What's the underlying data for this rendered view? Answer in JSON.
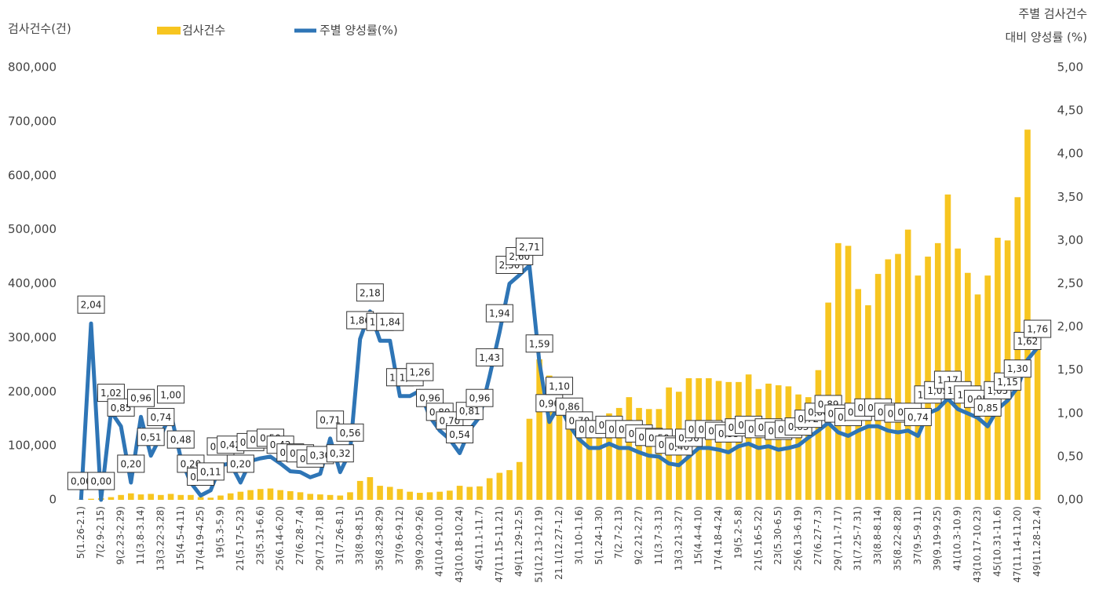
{
  "chart_data": {
    "type": "combo",
    "y_label": "검사건수(건)",
    "y2_label": [
      "주별 검사건수",
      "대비 양성률 (%)"
    ],
    "legend": "top",
    "grid": false,
    "categories": [
      "5(1.26-2.1)",
      null,
      "7(2.9-2.15)",
      null,
      "9(2.23-2.29)",
      null,
      "11(3.8-3.14)",
      null,
      "13(3.22-3.28)",
      null,
      "15(4.5-4.11)",
      null,
      "17(4.19-4.25)",
      null,
      "19(5.3-5.9)",
      null,
      "21(5.17-5.23)",
      null,
      "23(5.31-6.6)",
      null,
      "25(6.14-6.20)",
      null,
      "27(6.28-7.4)",
      null,
      "29(7.12-7.18)",
      null,
      "31(7.26-8.1)",
      null,
      "33(8.9-8.15)",
      null,
      "35(8.23-8.29)",
      null,
      "37(9.6-9.12)",
      null,
      "39(9.20-9.26)",
      null,
      "41(10.4-10.10)",
      null,
      "43(10.18-10.24)",
      null,
      "45(11.1-11.7)",
      null,
      "47(11.15-11.21)",
      null,
      "49(11.29-12.5)",
      null,
      "51(12.13-12.19)",
      null,
      "21.1(12.27-1.2)",
      null,
      "3(1.10-1.16)",
      null,
      "5(1.24-1.30)",
      null,
      "7(2.7-2.13)",
      null,
      "9(2.21-2.27)",
      null,
      "11(3.7-3.13)",
      null,
      "13(3.21-3.27)",
      null,
      "15(4.4-4.10)",
      null,
      "17(4.18-4.24)",
      null,
      "19(5.2-5.8)",
      null,
      "21(5.16-5.22)",
      null,
      "23(5.30-6.5)",
      null,
      "25(6.13-6.19)",
      null,
      "27(6.27-7.3)",
      null,
      "29(7.11-7.17)",
      null,
      "31(7.25-7.31)",
      null,
      "33(8.8-8.14)",
      null,
      "35(8.22-8.28)",
      null,
      "37(9.5-9.11)",
      null,
      "39(9.19-9.25)",
      null,
      "41(10.3-10.9)",
      null,
      "43(10.17-10.23)",
      null,
      "45(10.31-11.6)",
      null,
      "47(11.14-11.20)",
      null,
      "49(11.28-12.4)"
    ],
    "series": [
      {
        "name": "검사건수",
        "type": "bar",
        "color": "#f7c520",
        "values": [
          500,
          2000,
          3000,
          5000,
          9000,
          12000,
          10000,
          11000,
          9000,
          11000,
          9000,
          9000,
          5000,
          4000,
          8000,
          12000,
          15000,
          18000,
          20000,
          21000,
          18000,
          16000,
          14000,
          11000,
          10000,
          9000,
          8000,
          14000,
          35000,
          42000,
          26000,
          24000,
          20000,
          15000,
          13000,
          14000,
          15000,
          17000,
          26000,
          24000,
          25000,
          40000,
          50000,
          55000,
          70000,
          150000,
          260000,
          230000,
          200000,
          170000,
          150000,
          145000,
          150000,
          160000,
          170000,
          190000,
          170000,
          168000,
          168000,
          208000,
          200000,
          225000,
          225000,
          225000,
          220000,
          218000,
          218000,
          232000,
          205000,
          215000,
          212000,
          210000,
          195000,
          190000,
          240000,
          365000,
          475000,
          470000,
          390000,
          360000,
          418000,
          445000,
          455000,
          500000,
          415000,
          450000,
          475000,
          565000,
          465000,
          420000,
          380000,
          415000,
          485000,
          480000,
          560000,
          685000,
          330000
        ]
      },
      {
        "name": "주별 양성률(%)",
        "type": "line",
        "axis": "y2",
        "color": "#2e75b6",
        "values": [
          0.0,
          2.04,
          0.0,
          1.02,
          0.85,
          0.2,
          0.96,
          0.51,
          0.74,
          1.0,
          0.48,
          0.2,
          0.05,
          0.11,
          0.4,
          0.42,
          0.2,
          0.45,
          0.48,
          0.5,
          0.42,
          0.33,
          0.32,
          0.26,
          0.3,
          0.71,
          0.32,
          0.56,
          1.86,
          2.18,
          1.84,
          1.84,
          1.2,
          1.2,
          1.26,
          0.96,
          0.8,
          0.7,
          0.54,
          0.81,
          0.96,
          1.43,
          1.94,
          2.5,
          2.6,
          2.71,
          1.59,
          0.9,
          1.1,
          0.86,
          0.7,
          0.6,
          0.6,
          0.65,
          0.6,
          0.6,
          0.55,
          0.51,
          0.5,
          0.42,
          0.4,
          0.5,
          0.6,
          0.6,
          0.58,
          0.55,
          0.62,
          0.65,
          0.6,
          0.62,
          0.58,
          0.6,
          0.63,
          0.72,
          0.8,
          0.89,
          0.78,
          0.74,
          0.8,
          0.85,
          0.85,
          0.8,
          0.78,
          0.8,
          0.74,
          1.0,
          1.05,
          1.17,
          1.05,
          1.0,
          0.95,
          0.85,
          1.05,
          1.15,
          1.3,
          1.62,
          1.76
        ],
        "value_labels": [
          "0,00",
          "2,04",
          "0,00",
          "1,02",
          "0,85",
          "0,20",
          "0,96",
          "0,51",
          "0,74",
          "1,00",
          "0,48",
          "0,20",
          "0,05",
          "0,11",
          "0,40",
          "0,42",
          "0,20",
          "0,45",
          "0,48",
          "0,50",
          "0,42",
          "0,33",
          "0,32",
          "0,26",
          "0,30",
          "0,71",
          "0,32",
          "0,56",
          "1,86",
          "2,18",
          "1,84",
          "1,84",
          "1,20",
          "1,20",
          "1,26",
          "0,96",
          "0,80",
          "0,70",
          "0,54",
          "0,81",
          "0,96",
          "1,43",
          "1,94",
          "2,50",
          "2,60",
          "2,71",
          "1,59",
          "0,90",
          "1,10",
          "0,86",
          "0,70",
          "0,60",
          "0,60",
          "0,65",
          "0,60",
          "0,60",
          "0,55",
          "0,51",
          "0,50",
          "0,42",
          "0,40",
          "0,50",
          "0,60",
          "0,60",
          "0,58",
          "0,55",
          "0,62",
          "0,65",
          "0,60",
          "0,62",
          "0,58",
          "0,60",
          "0,63",
          "0,72",
          "0,80",
          "0,89",
          "0,78",
          "0,74",
          "0,80",
          "0,85",
          "0,85",
          "0,80",
          "0,78",
          "0,80",
          "0,74",
          "1,00",
          "1,05",
          "1,17",
          "1,05",
          "1,00",
          "0,95",
          "0,85",
          "1,05",
          "1,15",
          "1,30",
          "1,62",
          "1,76"
        ]
      }
    ],
    "ylim": [
      0,
      800000
    ],
    "yticks": [
      0,
      {
        "value": 100000,
        "label": "100,000"
      },
      {
        "value": 200000,
        "label": "200,000"
      },
      {
        "value": 300000,
        "label": "300,000"
      },
      {
        "value": 400000,
        "label": "400,000"
      },
      {
        "value": 500000,
        "label": "500,000"
      },
      {
        "value": 600000,
        "label": "600,000"
      },
      {
        "value": 700000,
        "label": "700,000"
      },
      {
        "value": 800000,
        "label": "800,000"
      }
    ],
    "y2lim": [
      0,
      5
    ],
    "y2ticks": [
      {
        "value": 0,
        "label": "0,00"
      },
      {
        "value": 0.5,
        "label": "0,50"
      },
      {
        "value": 1,
        "label": "1,00"
      },
      {
        "value": 1.5,
        "label": "1,50"
      },
      {
        "value": 2,
        "label": "2,00"
      },
      {
        "value": 2.5,
        "label": "2,50"
      },
      {
        "value": 3,
        "label": "3,00"
      },
      {
        "value": 3.5,
        "label": "3,50"
      },
      {
        "value": 4,
        "label": "4,00"
      },
      {
        "value": 4.5,
        "label": "4,50"
      },
      {
        "value": 5,
        "label": "5,00"
      }
    ]
  }
}
